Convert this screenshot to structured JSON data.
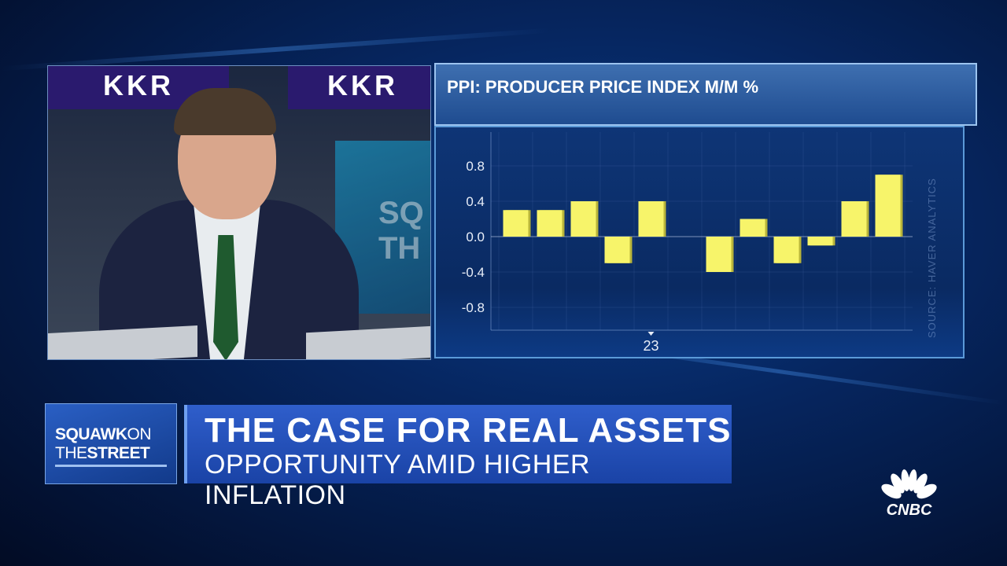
{
  "video": {
    "backdrop_logo": "KKR",
    "backdrop_screen": "SQ TH"
  },
  "chart_data": {
    "type": "bar",
    "title": "PPI: PRODUCER PRICE INDEX M/M %",
    "source": "SOURCE: HAVER ANALYTICS",
    "x_tick_labels": [
      {
        "index": 4,
        "label": "23"
      }
    ],
    "values": [
      0.3,
      0.3,
      0.4,
      -0.3,
      0.4,
      0.0,
      -0.4,
      0.2,
      -0.3,
      -0.1,
      0.4,
      0.7
    ],
    "y_ticks": [
      "0.8",
      "0.4",
      "0.0",
      "-0.4",
      "-0.8"
    ],
    "y_tick_values": [
      0.8,
      0.4,
      0.0,
      -0.4,
      -0.8
    ],
    "ylim": [
      -1.0,
      1.2
    ],
    "grid": true,
    "bar_color": "#f7f46a"
  },
  "lower_third": {
    "show_line1_bold": "SQUAWK",
    "show_line1_light": "ON",
    "show_line2_light": "THE",
    "show_line2_bold": "STREET",
    "headline": "THE CASE FOR REAL ASSETS",
    "subheadline": "OPPORTUNITY AMID HIGHER INFLATION"
  },
  "network": {
    "logo_text": "CNBC",
    "logo_icon": "peacock-icon"
  }
}
